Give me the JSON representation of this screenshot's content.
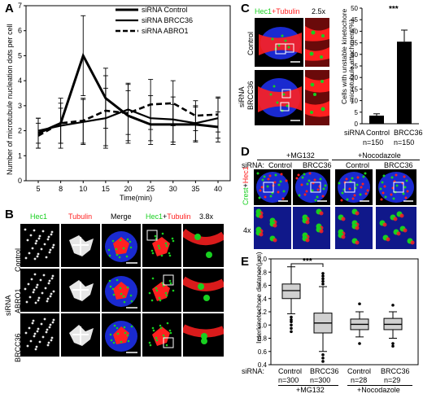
{
  "panels": {
    "A": {
      "letter": "A",
      "chart_data": {
        "type": "line",
        "x": [
          5,
          8,
          10,
          15,
          20,
          25,
          30,
          35,
          40
        ],
        "ylim": [
          0,
          7
        ],
        "yticks": [
          0,
          1,
          2,
          3,
          4,
          5,
          6,
          7
        ],
        "xlabel": "Time(min)",
        "ylabel": "Number of microtubule nucleation dots per cell",
        "legend_position": "top-right",
        "series": [
          {
            "name": "siRNA Control",
            "style": "solid",
            "values": [
              1.9,
              2.3,
              5.0,
              3.3,
              2.6,
              2.25,
              2.25,
              2.25,
              2.15
            ],
            "err": [
              0.6,
              1.0,
              1.6,
              1.2,
              1.0,
              0.8,
              0.8,
              0.7,
              0.6
            ]
          },
          {
            "name": "siRNA BRCC36",
            "style": "solid",
            "values": [
              2.0,
              2.2,
              2.35,
              2.5,
              2.85,
              2.5,
              2.45,
              2.3,
              2.5
            ],
            "err": [
              0.5,
              0.7,
              0.9,
              1.2,
              1.0,
              0.9,
              0.9,
              0.7,
              0.8
            ]
          },
          {
            "name": "siRNA ABRO1",
            "style": "dashed",
            "values": [
              1.8,
              2.3,
              2.4,
              2.8,
              2.7,
              3.05,
              3.1,
              2.6,
              2.65
            ],
            "err": [
              0.5,
              0.8,
              0.9,
              1.4,
              1.2,
              1.0,
              0.9,
              0.6,
              0.7
            ]
          }
        ]
      }
    },
    "B": {
      "letter": "B",
      "col_headers": [
        "Hec1",
        "Tubulin",
        "Merge",
        "Hec1",
        "+",
        "Tubulin",
        "3.8x"
      ],
      "side_label": "siRNA",
      "rows": [
        "Control",
        "ABRO1",
        "BRCC36"
      ]
    },
    "C": {
      "letter": "C",
      "header_hec1": "Hec1",
      "header_tub": "+Tubulin",
      "zoom": "2.5x",
      "side_label": "siRNA",
      "rows": [
        "Control",
        "BRCC36"
      ],
      "chart_data": {
        "type": "bar",
        "categories": [
          "Control",
          "BRCC36"
        ],
        "values": [
          3.5,
          35.5
        ],
        "err": [
          0.8,
          5.0
        ],
        "ylim": [
          0,
          50
        ],
        "yticks": [
          0,
          5,
          10,
          15,
          20,
          25,
          30,
          35,
          40,
          45,
          50
        ],
        "ylabel_line1": "Cells with unstable kinetochore",
        "ylabel_line2": "-microtubule attachment(%)",
        "significance": "***",
        "x_prefix": "siRNA",
        "n_labels": [
          "n=150",
          "n=150"
        ]
      }
    },
    "D": {
      "letter": "D",
      "treatments": [
        "+MG132",
        "+Nocodazole"
      ],
      "sirna_label": "siRNA:",
      "cols": [
        "Control",
        "BRCC36",
        "Control",
        "BRCC36"
      ],
      "side_crest": "Crest",
      "side_plus": "+",
      "side_hec1": "Hec1",
      "zoom": "4x"
    },
    "E": {
      "letter": "E",
      "chart_data": {
        "type": "box",
        "ylabel": "Interkinetochore distance(μm)",
        "ylim": [
          0.4,
          2.0
        ],
        "yticks": [
          0.4,
          0.6,
          0.8,
          1.0,
          1.2,
          1.4,
          1.6,
          1.8,
          2.0
        ],
        "categories": [
          "Control",
          "BRCC36",
          "Control",
          "BRCC36"
        ],
        "n_labels": [
          "n=300",
          "n=300",
          "n=28",
          "n=29"
        ],
        "groups": [
          "+MG132",
          "+Nocodazole"
        ],
        "sirna_label": "siRNA:",
        "significance": "***",
        "boxes": [
          {
            "whislo": 1.17,
            "q1": 1.4,
            "med": 1.52,
            "q3": 1.62,
            "whishi": 1.88,
            "outliers": [
              0.9,
              0.95,
              1.0,
              1.05,
              1.08,
              1.12
            ]
          },
          {
            "whislo": 0.6,
            "q1": 0.88,
            "med": 1.03,
            "q3": 1.18,
            "whishi": 1.58,
            "outliers": [
              0.45,
              0.5,
              0.55,
              1.62,
              1.66,
              1.7,
              1.74,
              1.78
            ]
          },
          {
            "whislo": 0.82,
            "q1": 0.93,
            "med": 1.01,
            "q3": 1.09,
            "whishi": 1.2,
            "outliers": [
              0.72,
              1.32
            ]
          },
          {
            "whislo": 0.8,
            "q1": 0.93,
            "med": 1.01,
            "q3": 1.1,
            "whishi": 1.2,
            "outliers": [
              0.68,
              0.72,
              1.3
            ]
          }
        ]
      }
    }
  },
  "colors": {
    "green": "#18d020",
    "red": "#ff2020",
    "blue": "#1a2ad0"
  }
}
